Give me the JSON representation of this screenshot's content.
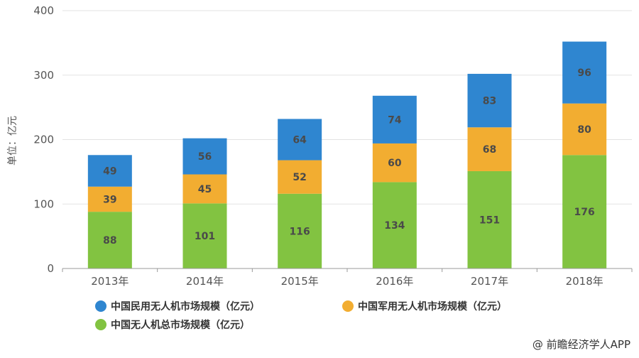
{
  "chart_data": {
    "type": "bar",
    "stacked": true,
    "categories": [
      "2013年",
      "2014年",
      "2015年",
      "2016年",
      "2017年",
      "2018年"
    ],
    "series": [
      {
        "name": "中国无人机总市场规模（亿元）",
        "color": "#82c341",
        "values": [
          88,
          101,
          116,
          134,
          151,
          176
        ]
      },
      {
        "name": "中国军用无人机市场规模（亿元）",
        "color": "#f2ad31",
        "values": [
          39,
          45,
          52,
          60,
          68,
          80
        ]
      },
      {
        "name": "中国民用无人机市场规模（亿元）",
        "color": "#2f86d0",
        "values": [
          49,
          56,
          64,
          74,
          83,
          96
        ]
      }
    ],
    "ylabel": "单位：亿元",
    "ylim": [
      0,
      400
    ],
    "yticks": [
      0,
      100,
      200,
      300,
      400
    ],
    "grid": true,
    "legend_position": "bottom-left"
  },
  "credit": "@ 前瞻经济学人APP"
}
